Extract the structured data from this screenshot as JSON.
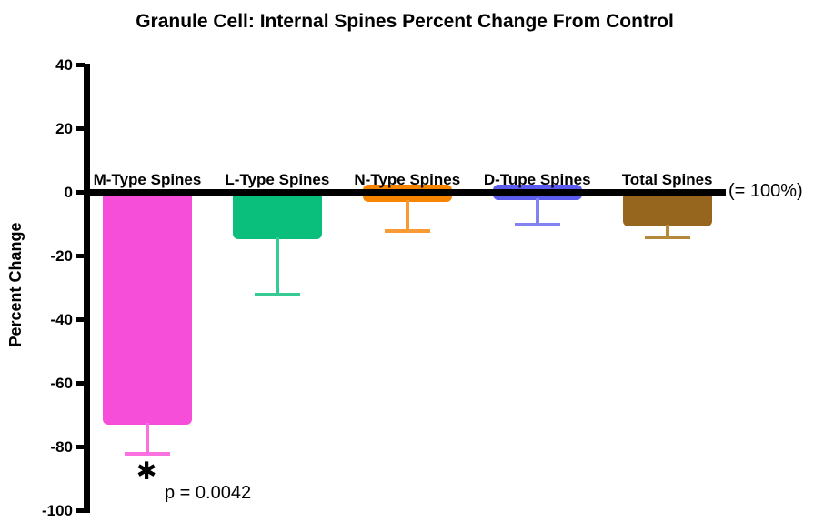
{
  "chart_data": {
    "type": "bar",
    "title": "Granule Cell: Internal Spines Percent Change From Control",
    "xlabel": "",
    "ylabel": "Percent Change",
    "ylim": [
      -100,
      40
    ],
    "yticks": [
      40,
      20,
      0,
      -20,
      -40,
      -60,
      -80,
      -100
    ],
    "grid": false,
    "legend": "none",
    "baseline_value": 0,
    "baseline_label": "(= 100%)",
    "categories": [
      "M-Type Spines",
      "L-Type Spines",
      "N-Type Spines",
      "D-Tupe Spines",
      "Total Spines"
    ],
    "values": [
      -73,
      -14.6,
      -3,
      -2.5,
      -10.8
    ],
    "error_whisker_low": [
      -82,
      -32,
      -12,
      -10,
      -14
    ],
    "bar_colors": [
      "#f64ed8",
      "#0abe7c",
      "#f78500",
      "#5c5cee",
      "#96661e"
    ],
    "error_colors": [
      "#fa72e0",
      "#35cb93",
      "#f99b35",
      "#8282f1",
      "#b4893c"
    ],
    "significance": {
      "category_index": 0,
      "marker": "✱",
      "label": "p = 0.0042"
    }
  }
}
